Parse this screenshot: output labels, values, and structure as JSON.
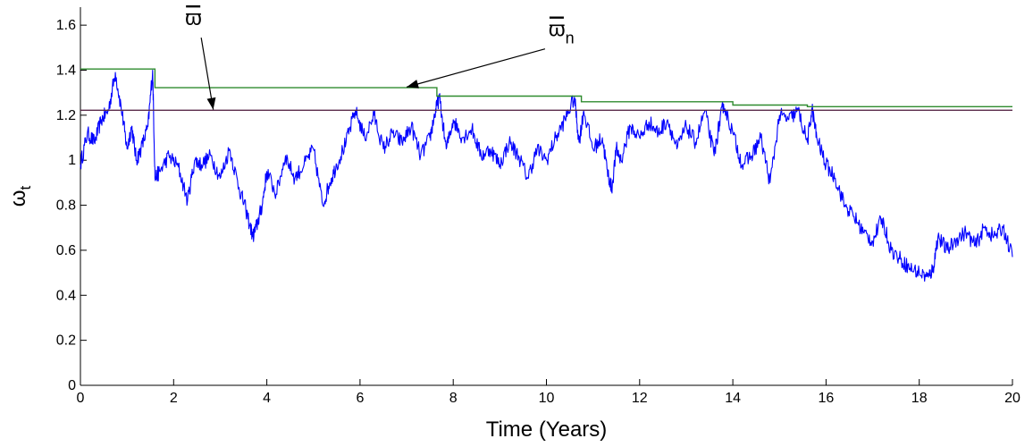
{
  "chart_data": {
    "type": "line",
    "title": "",
    "xlabel": "Time (Years)",
    "ylabel_main": "ω",
    "ylabel_sub": "t",
    "xlim": [
      0,
      20
    ],
    "ylim": [
      0,
      1.68
    ],
    "x_ticks": [
      0,
      2,
      4,
      6,
      8,
      10,
      12,
      14,
      16,
      18,
      20
    ],
    "x_tick_labels": [
      "0",
      "2",
      "4",
      "6",
      "8",
      "10",
      "12",
      "14",
      "16",
      "18",
      "20"
    ],
    "y_ticks": [
      0,
      0.2,
      0.4,
      0.6,
      0.8,
      1,
      1.2,
      1.4,
      1.6
    ],
    "y_tick_labels": [
      "0",
      "0.2",
      "0.4",
      "0.6",
      "0.8",
      "1",
      "1.2",
      "1.4",
      "1.6"
    ],
    "grid": false,
    "colors": {
      "wealth": "#0000ff",
      "omega_bar": "#5a2a4a",
      "omega_bar_n": "#2e8b2e",
      "axis": "#000000"
    },
    "series": [
      {
        "key": "wealth",
        "x": [
          0,
          0.15,
          0.3,
          0.45,
          0.6,
          0.75,
          0.9,
          1.0,
          1.1,
          1.2,
          1.3,
          1.45,
          1.55,
          1.6,
          1.7,
          1.9,
          2.1,
          2.3,
          2.45,
          2.6,
          2.8,
          3.0,
          3.2,
          3.4,
          3.55,
          3.7,
          3.8,
          3.9,
          4.0,
          4.2,
          4.4,
          4.6,
          4.8,
          5.0,
          5.2,
          5.35,
          5.5,
          5.7,
          5.9,
          6.1,
          6.3,
          6.5,
          6.7,
          6.9,
          7.1,
          7.3,
          7.5,
          7.6,
          7.7,
          7.85,
          8.0,
          8.2,
          8.4,
          8.6,
          8.8,
          9.0,
          9.2,
          9.4,
          9.6,
          9.8,
          10.0,
          10.2,
          10.4,
          10.6,
          10.7,
          10.8,
          11.0,
          11.2,
          11.3,
          11.4,
          11.5,
          11.6,
          11.8,
          12.0,
          12.2,
          12.4,
          12.6,
          12.8,
          13.0,
          13.2,
          13.4,
          13.6,
          13.7,
          13.8,
          14.0,
          14.2,
          14.4,
          14.6,
          14.8,
          15.0,
          15.2,
          15.4,
          15.6,
          15.7,
          15.8,
          16.0,
          16.2,
          16.4,
          16.6,
          16.8,
          17.0,
          17.2,
          17.4,
          17.6,
          17.8,
          18.0,
          18.2,
          18.3,
          18.4,
          18.6,
          18.8,
          19.0,
          19.2,
          19.4,
          19.6,
          19.8,
          20.0
        ],
        "y": [
          0.98,
          1.12,
          1.08,
          1.18,
          1.22,
          1.39,
          1.2,
          1.05,
          1.15,
          1.0,
          1.05,
          1.15,
          1.4,
          0.92,
          0.95,
          1.02,
          0.97,
          0.82,
          1.0,
          0.98,
          1.02,
          0.92,
          1.05,
          0.88,
          0.78,
          0.66,
          0.72,
          0.8,
          0.95,
          0.85,
          1.02,
          0.92,
          0.98,
          1.05,
          0.8,
          0.9,
          0.98,
          1.08,
          1.22,
          1.1,
          1.2,
          1.05,
          1.12,
          1.08,
          1.15,
          1.02,
          1.1,
          1.2,
          1.28,
          1.05,
          1.18,
          1.1,
          1.14,
          1.02,
          1.05,
          0.98,
          1.08,
          1.02,
          0.92,
          1.05,
          1.0,
          1.1,
          1.18,
          1.28,
          1.08,
          1.22,
          1.05,
          1.1,
          0.96,
          0.87,
          1.05,
          1.0,
          1.15,
          1.1,
          1.17,
          1.12,
          1.18,
          1.05,
          1.15,
          1.08,
          1.22,
          1.02,
          1.15,
          1.25,
          1.12,
          0.98,
          1.02,
          1.1,
          0.9,
          1.2,
          1.18,
          1.22,
          1.08,
          1.23,
          1.1,
          0.98,
          0.92,
          0.8,
          0.75,
          0.68,
          0.64,
          0.74,
          0.6,
          0.56,
          0.52,
          0.5,
          0.48,
          0.52,
          0.66,
          0.6,
          0.65,
          0.68,
          0.62,
          0.7,
          0.66,
          0.7,
          0.57
        ]
      },
      {
        "key": "omega_bar",
        "x": [
          0,
          20
        ],
        "y": [
          1.222,
          1.222
        ]
      },
      {
        "key": "omega_bar_n",
        "x": [
          0,
          1.6,
          1.6,
          7.65,
          7.65,
          10.75,
          10.75,
          14.0,
          14.0,
          15.6,
          15.6,
          20
        ],
        "y": [
          1.405,
          1.405,
          1.322,
          1.322,
          1.285,
          1.285,
          1.26,
          1.26,
          1.245,
          1.245,
          1.238,
          1.238
        ]
      }
    ],
    "annotations": [
      {
        "key": "omega_bar",
        "main": "ϖ",
        "sub": "",
        "x": 2.4,
        "y": 1.6,
        "arrow_to": [
          2.85,
          1.225
        ]
      },
      {
        "key": "omega_bar_n",
        "main": "ϖ",
        "sub": "n",
        "x": 10.2,
        "y": 1.55,
        "arrow_to": [
          7.0,
          1.325
        ]
      }
    ]
  }
}
